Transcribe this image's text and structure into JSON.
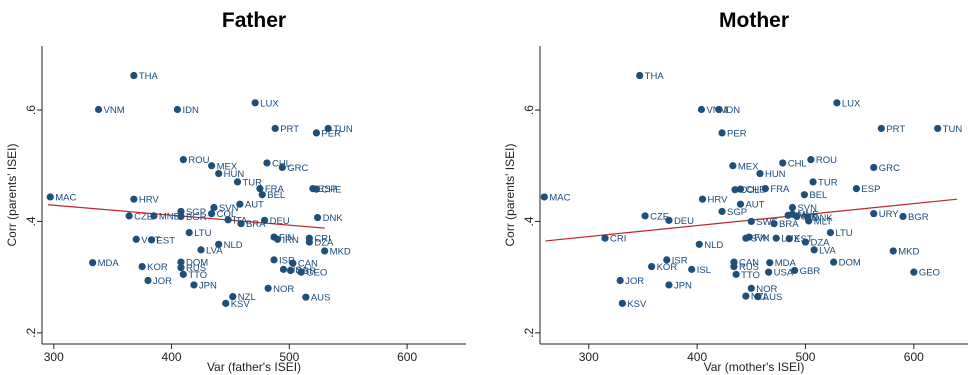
{
  "chart_data": [
    {
      "type": "scatter",
      "title": "Father",
      "xlabel": "Var (father's ISEI)",
      "ylabel": "Corr (parents' ISEI)",
      "xlim": [
        290,
        650
      ],
      "ylim": [
        0.18,
        0.715
      ],
      "xticks": [
        300,
        400,
        500,
        600
      ],
      "xtick_labels": [
        "300",
        "400",
        "500",
        "600"
      ],
      "yticks": [
        0.2,
        0.4,
        0.6
      ],
      "ytick_labels": [
        ".2",
        ".4",
        ".6"
      ],
      "point_color": "#1f4e79",
      "fit_line_color": "#c0262c",
      "fit_line": {
        "x": [
          295,
          530
        ],
        "y": [
          0.43,
          0.388
        ]
      },
      "points": [
        {
          "label": "THA",
          "x": 368,
          "y": 0.662
        },
        {
          "label": "VNM",
          "x": 338,
          "y": 0.601
        },
        {
          "label": "IDN",
          "x": 405,
          "y": 0.601
        },
        {
          "label": "LUX",
          "x": 471,
          "y": 0.613
        },
        {
          "label": "PRT",
          "x": 488,
          "y": 0.567
        },
        {
          "label": "TUN",
          "x": 533,
          "y": 0.567
        },
        {
          "label": "PER",
          "x": 523,
          "y": 0.559
        },
        {
          "label": "ROU",
          "x": 410,
          "y": 0.511
        },
        {
          "label": "MEX",
          "x": 434,
          "y": 0.5
        },
        {
          "label": "CHL",
          "x": 481,
          "y": 0.505
        },
        {
          "label": "GRC",
          "x": 494,
          "y": 0.497
        },
        {
          "label": "HUN",
          "x": 440,
          "y": 0.486
        },
        {
          "label": "TUR",
          "x": 456,
          "y": 0.471
        },
        {
          "label": "ESP",
          "x": 520,
          "y": 0.459
        },
        {
          "label": "FRA",
          "x": 475,
          "y": 0.459
        },
        {
          "label": "CHE",
          "x": 523,
          "y": 0.458
        },
        {
          "label": "BEL",
          "x": 477,
          "y": 0.448
        },
        {
          "label": "MAC",
          "x": 297,
          "y": 0.444
        },
        {
          "label": "HRV",
          "x": 368,
          "y": 0.44
        },
        {
          "label": "AUT",
          "x": 458,
          "y": 0.431
        },
        {
          "label": "SVN",
          "x": 436,
          "y": 0.425
        },
        {
          "label": "SGP",
          "x": 408,
          "y": 0.418
        },
        {
          "label": "COL",
          "x": 434,
          "y": 0.414
        },
        {
          "label": "CZE",
          "x": 364,
          "y": 0.41
        },
        {
          "label": "MNE",
          "x": 385,
          "y": 0.41
        },
        {
          "label": "BGR",
          "x": 408,
          "y": 0.409
        },
        {
          "label": "ITA",
          "x": 448,
          "y": 0.403
        },
        {
          "label": "DNK",
          "x": 524,
          "y": 0.407
        },
        {
          "label": "DEU",
          "x": 479,
          "y": 0.402
        },
        {
          "label": "BRA",
          "x": 459,
          "y": 0.396
        },
        {
          "label": "LTU",
          "x": 415,
          "y": 0.38
        },
        {
          "label": "FIN",
          "x": 487,
          "y": 0.372
        },
        {
          "label": "IRN",
          "x": 490,
          "y": 0.368
        },
        {
          "label": "CRI",
          "x": 517,
          "y": 0.37
        },
        {
          "label": "DZA",
          "x": 517,
          "y": 0.363
        },
        {
          "label": "VCT",
          "x": 370,
          "y": 0.368
        },
        {
          "label": "EST",
          "x": 383,
          "y": 0.367
        },
        {
          "label": "NLD",
          "x": 440,
          "y": 0.359
        },
        {
          "label": "LVA",
          "x": 425,
          "y": 0.349
        },
        {
          "label": "MKD",
          "x": 530,
          "y": 0.347
        },
        {
          "label": "MDA",
          "x": 333,
          "y": 0.326
        },
        {
          "label": "DOM",
          "x": 408,
          "y": 0.327
        },
        {
          "label": "ISR",
          "x": 487,
          "y": 0.331
        },
        {
          "label": "CAN",
          "x": 503,
          "y": 0.325
        },
        {
          "label": "KOR",
          "x": 375,
          "y": 0.319
        },
        {
          "label": "RUS",
          "x": 408,
          "y": 0.317
        },
        {
          "label": "USA",
          "x": 495,
          "y": 0.314
        },
        {
          "label": "GBR",
          "x": 501,
          "y": 0.312
        },
        {
          "label": "GEO",
          "x": 510,
          "y": 0.309
        },
        {
          "label": "TTO",
          "x": 410,
          "y": 0.305
        },
        {
          "label": "JOR",
          "x": 380,
          "y": 0.294
        },
        {
          "label": "JPN",
          "x": 419,
          "y": 0.286
        },
        {
          "label": "NOR",
          "x": 482,
          "y": 0.28
        },
        {
          "label": "AUS",
          "x": 514,
          "y": 0.264
        },
        {
          "label": "NZL",
          "x": 452,
          "y": 0.265
        },
        {
          "label": "KSV",
          "x": 446,
          "y": 0.253
        }
      ]
    },
    {
      "type": "scatter",
      "title": "Mother",
      "xlabel": "Var (mother's ISEI)",
      "ylabel": "Corr (parents' ISEI)",
      "xlim": [
        255,
        650
      ],
      "ylim": [
        0.18,
        0.715
      ],
      "xticks": [
        300,
        400,
        500,
        600
      ],
      "xtick_labels": [
        "300",
        "400",
        "500",
        "600"
      ],
      "yticks": [
        0.2,
        0.4,
        0.6
      ],
      "ytick_labels": [
        ".2",
        ".4",
        ".6"
      ],
      "point_color": "#1f4e79",
      "fit_line_color": "#c0262c",
      "fit_line": {
        "x": [
          260,
          640
        ],
        "y": [
          0.365,
          0.44
        ]
      },
      "points": [
        {
          "label": "THA",
          "x": 347,
          "y": 0.662
        },
        {
          "label": "VNM",
          "x": 404,
          "y": 0.601
        },
        {
          "label": "IDN",
          "x": 420,
          "y": 0.601
        },
        {
          "label": "LUX",
          "x": 529,
          "y": 0.613
        },
        {
          "label": "PRT",
          "x": 570,
          "y": 0.567
        },
        {
          "label": "TUN",
          "x": 622,
          "y": 0.567
        },
        {
          "label": "PER",
          "x": 423,
          "y": 0.559
        },
        {
          "label": "ROU",
          "x": 505,
          "y": 0.511
        },
        {
          "label": "CHL",
          "x": 479,
          "y": 0.505
        },
        {
          "label": "MEX",
          "x": 433,
          "y": 0.5
        },
        {
          "label": "GRC",
          "x": 563,
          "y": 0.497
        },
        {
          "label": "HUN",
          "x": 458,
          "y": 0.486
        },
        {
          "label": "TUR",
          "x": 507,
          "y": 0.471
        },
        {
          "label": "ESP",
          "x": 547,
          "y": 0.459
        },
        {
          "label": "FRA",
          "x": 463,
          "y": 0.459
        },
        {
          "label": "CHE",
          "x": 440,
          "y": 0.458
        },
        {
          "label": "COL",
          "x": 435,
          "y": 0.457
        },
        {
          "label": "BEL",
          "x": 499,
          "y": 0.448
        },
        {
          "label": "MAC",
          "x": 259,
          "y": 0.444
        },
        {
          "label": "HRV",
          "x": 405,
          "y": 0.44
        },
        {
          "label": "AUT",
          "x": 440,
          "y": 0.431
        },
        {
          "label": "SVN",
          "x": 488,
          "y": 0.425
        },
        {
          "label": "SGP",
          "x": 423,
          "y": 0.418
        },
        {
          "label": "URY",
          "x": 563,
          "y": 0.414
        },
        {
          "label": "MNE",
          "x": 488,
          "y": 0.413
        },
        {
          "label": "ITA",
          "x": 484,
          "y": 0.411
        },
        {
          "label": "CZE",
          "x": 352,
          "y": 0.41
        },
        {
          "label": "BGR",
          "x": 590,
          "y": 0.409
        },
        {
          "label": "IRN",
          "x": 492,
          "y": 0.409
        },
        {
          "label": "DNK",
          "x": 502,
          "y": 0.407
        },
        {
          "label": "DEU",
          "x": 374,
          "y": 0.402
        },
        {
          "label": "MLT",
          "x": 503,
          "y": 0.401
        },
        {
          "label": "SWE",
          "x": 450,
          "y": 0.4
        },
        {
          "label": "BRA",
          "x": 471,
          "y": 0.396
        },
        {
          "label": "LTU",
          "x": 523,
          "y": 0.38
        },
        {
          "label": "FIN",
          "x": 448,
          "y": 0.372
        },
        {
          "label": "SVK",
          "x": 445,
          "y": 0.37
        },
        {
          "label": "EST",
          "x": 485,
          "y": 0.369
        },
        {
          "label": "CRI",
          "x": 315,
          "y": 0.37
        },
        {
          "label": "LUX2",
          "x": 473,
          "y": 0.37
        },
        {
          "label": "DZA",
          "x": 500,
          "y": 0.363
        },
        {
          "label": "NLD",
          "x": 402,
          "y": 0.359
        },
        {
          "label": "LVA",
          "x": 508,
          "y": 0.349
        },
        {
          "label": "MKD",
          "x": 581,
          "y": 0.347
        },
        {
          "label": "ISR",
          "x": 372,
          "y": 0.331
        },
        {
          "label": "DOM",
          "x": 526,
          "y": 0.327
        },
        {
          "label": "CAN",
          "x": 434,
          "y": 0.327
        },
        {
          "label": "MDA",
          "x": 467,
          "y": 0.326
        },
        {
          "label": "KOR",
          "x": 358,
          "y": 0.319
        },
        {
          "label": "RUS",
          "x": 434,
          "y": 0.319
        },
        {
          "label": "ISL",
          "x": 395,
          "y": 0.314
        },
        {
          "label": "GBR",
          "x": 490,
          "y": 0.312
        },
        {
          "label": "USA",
          "x": 466,
          "y": 0.309
        },
        {
          "label": "GEO",
          "x": 600,
          "y": 0.309
        },
        {
          "label": "TTO",
          "x": 436,
          "y": 0.305
        },
        {
          "label": "JOR",
          "x": 329,
          "y": 0.294
        },
        {
          "label": "JPN",
          "x": 374,
          "y": 0.286
        },
        {
          "label": "NOR",
          "x": 450,
          "y": 0.28
        },
        {
          "label": "AUS",
          "x": 456,
          "y": 0.265
        },
        {
          "label": "NZL",
          "x": 445,
          "y": 0.266
        },
        {
          "label": "KSV",
          "x": 331,
          "y": 0.253
        }
      ]
    }
  ]
}
